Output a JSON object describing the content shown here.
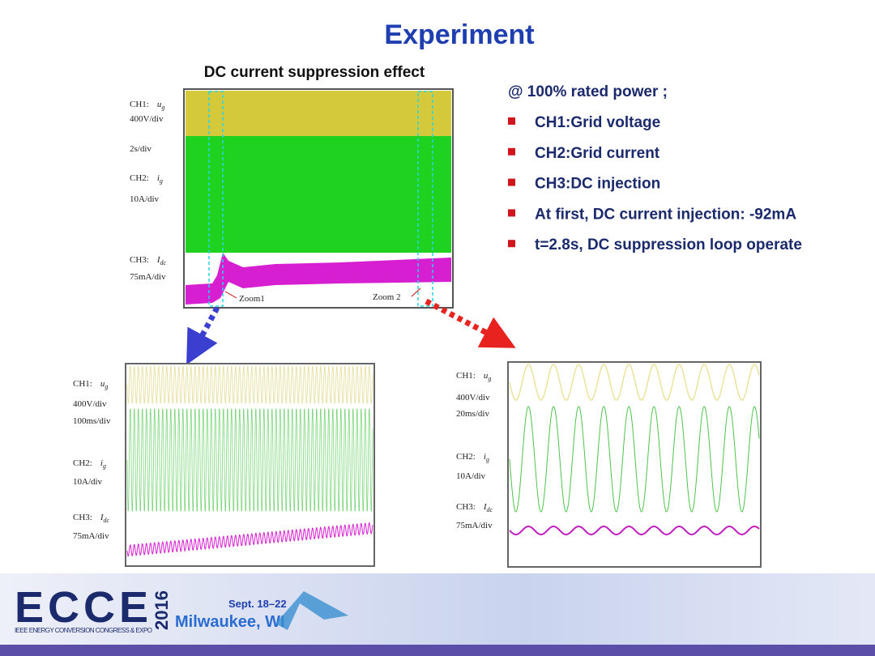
{
  "title": "Experiment",
  "overview": {
    "title": "DC current suppression effect",
    "ch1": {
      "channel": "CH1:",
      "symbol": "u",
      "subscript": "g",
      "scale": "400V/div"
    },
    "time": "2s/div",
    "ch2": {
      "channel": "CH2:",
      "symbol": "i",
      "subscript": "g",
      "scale": "10A/div"
    },
    "ch3": {
      "channel": "CH3:",
      "symbol": "I",
      "subscript": "dc",
      "scale": "75mA/div"
    },
    "zoom_labels": [
      "Zoom1",
      "Zoom 2"
    ]
  },
  "zoom1": {
    "ch1": {
      "channel": "CH1:",
      "symbol": "u",
      "subscript": "g",
      "scale": "400V/div"
    },
    "time": "100ms/div",
    "ch2": {
      "channel": "CH2:",
      "symbol": "i",
      "subscript": "g",
      "scale": "10A/div"
    },
    "ch3": {
      "channel": "CH3:",
      "symbol": "I",
      "subscript": "dc",
      "scale": "75mA/div"
    }
  },
  "zoom2": {
    "ch1": {
      "channel": "CH1:",
      "symbol": "u",
      "subscript": "g",
      "scale": "400V/div"
    },
    "time": "20ms/div",
    "ch2": {
      "channel": "CH2:",
      "symbol": "i",
      "subscript": "g",
      "scale": "10A/div"
    },
    "ch3": {
      "channel": "CH3:",
      "symbol": "I",
      "subscript": "dc",
      "scale": "75mA/div"
    }
  },
  "conditions": {
    "heading": "@ 100% rated power ;",
    "bullets": [
      "CH1:Grid voltage",
      "CH2:Grid current",
      "CH3:DC injection",
      "At first, DC current injection: -92mA",
      "t=2.8s, DC suppression loop operate"
    ]
  },
  "footer": {
    "logo": "ECCE",
    "year": "2016",
    "tagline": "IEEE ENERGY CONVERSION CONGRESS & EXPO",
    "dates": "Sept. 18–22",
    "location": "Milwaukee, WI"
  }
}
